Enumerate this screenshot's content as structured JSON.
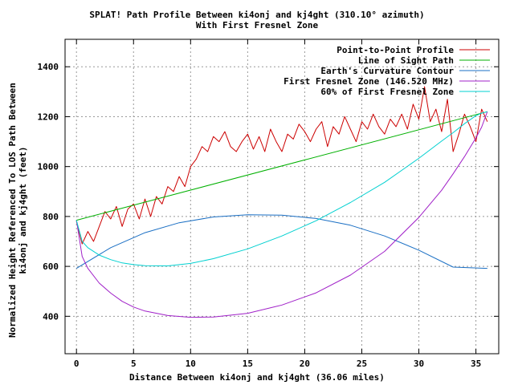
{
  "chart_data": {
    "type": "line",
    "title": "SPLAT! Path Profile Between ki4onj and kj4ght (310.10° azimuth)",
    "subtitle": "With First Fresnel Zone",
    "xlabel": "Distance Between ki4onj and kj4ght (36.06 miles)",
    "ylabel": [
      "Normalized Height Referenced To LOS Path Between",
      "ki4onj and kj4ght (feet)"
    ],
    "xlim": [
      -1,
      37
    ],
    "ylim": [
      250,
      1510
    ],
    "x_ticks": [
      0,
      5,
      10,
      15,
      20,
      25,
      30,
      35
    ],
    "y_ticks": [
      400,
      600,
      800,
      1000,
      1200,
      1400
    ],
    "grid": true,
    "legend": "top-right",
    "series": [
      {
        "name": "Point-to-Point Profile",
        "color": "#cc0000",
        "x": [
          0,
          0.5,
          1,
          1.5,
          2,
          2.5,
          3,
          3.5,
          4,
          4.5,
          5,
          5.5,
          6,
          6.5,
          7,
          7.5,
          8,
          8.5,
          9,
          9.5,
          10,
          10.5,
          11,
          11.5,
          12,
          12.5,
          13,
          13.5,
          14,
          14.5,
          15,
          15.5,
          16,
          16.5,
          17,
          17.5,
          18,
          18.5,
          19,
          19.5,
          20,
          20.5,
          21,
          21.5,
          22,
          22.5,
          23,
          23.5,
          24,
          24.5,
          25,
          25.5,
          26,
          26.5,
          27,
          27.5,
          28,
          28.5,
          29,
          29.5,
          30,
          30.5,
          31,
          31.5,
          32,
          32.5,
          33,
          33.5,
          34,
          34.5,
          35,
          35.5,
          36
        ],
        "y": [
          780,
          690,
          740,
          700,
          760,
          820,
          790,
          840,
          760,
          830,
          850,
          790,
          870,
          800,
          880,
          850,
          920,
          900,
          960,
          920,
          1000,
          1030,
          1080,
          1060,
          1120,
          1100,
          1140,
          1080,
          1060,
          1100,
          1130,
          1070,
          1120,
          1060,
          1150,
          1100,
          1060,
          1130,
          1110,
          1170,
          1140,
          1100,
          1150,
          1180,
          1080,
          1160,
          1130,
          1200,
          1150,
          1100,
          1180,
          1150,
          1210,
          1160,
          1130,
          1190,
          1160,
          1210,
          1150,
          1250,
          1190,
          1320,
          1180,
          1230,
          1140,
          1270,
          1060,
          1130,
          1210,
          1160,
          1100,
          1230,
          1180
        ]
      },
      {
        "name": "Line of Sight Path",
        "color": "#00b000",
        "x": [
          0,
          36
        ],
        "y": [
          785,
          1220
        ]
      },
      {
        "name": "Earth's Curvature Contour",
        "color": "#1a6fc4",
        "x": [
          0,
          3,
          6,
          9,
          12,
          15,
          18,
          21,
          24,
          27,
          30,
          33,
          36
        ],
        "y": [
          592,
          675,
          735,
          775,
          798,
          807,
          805,
          792,
          765,
          722,
          665,
          597,
          592
        ]
      },
      {
        "name": "First Fresnel Zone (146.520 MHz)",
        "color": "#a020c8",
        "x": [
          0,
          0.5,
          1,
          2,
          3,
          4,
          5,
          6,
          8,
          10,
          12,
          15,
          18,
          21,
          24,
          27,
          30,
          32,
          33,
          34,
          35,
          35.5,
          36
        ],
        "y": [
          785,
          640,
          592,
          533,
          493,
          460,
          437,
          421,
          403,
          396,
          397,
          412,
          445,
          494,
          565,
          660,
          796,
          905,
          971,
          1040,
          1115,
          1158,
          1220
        ]
      },
      {
        "name": "60% of First Fresnel Zone",
        "color": "#00d0d0",
        "x": [
          0,
          0.5,
          1,
          2,
          3,
          4,
          5,
          6,
          8,
          10,
          12,
          15,
          18,
          21,
          24,
          27,
          30,
          32,
          33,
          34,
          35,
          35.5,
          36
        ],
        "y": [
          785,
          700,
          675,
          645,
          627,
          614,
          607,
          603,
          602,
          612,
          631,
          670,
          722,
          783,
          856,
          937,
          1033,
          1102,
          1136,
          1172,
          1204,
          1214,
          1220
        ]
      }
    ]
  }
}
